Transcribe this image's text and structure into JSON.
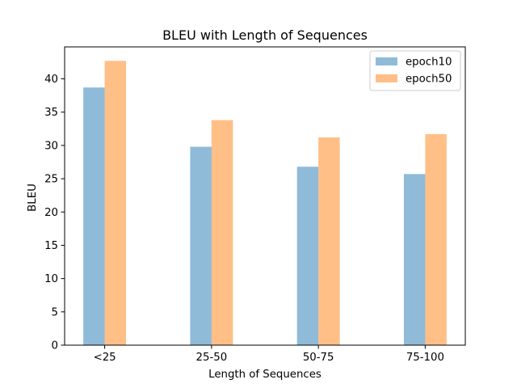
{
  "chart_data": {
    "type": "bar",
    "title": "BLEU with Length of Sequences",
    "xlabel": "Length of Sequences",
    "ylabel": "BLEU",
    "categories": [
      "<25",
      "25-50",
      "50-75",
      "75-100"
    ],
    "series": [
      {
        "name": "epoch10",
        "values": [
          38.7,
          29.8,
          26.8,
          25.7
        ],
        "color": "#1f77b4"
      },
      {
        "name": "epoch50",
        "values": [
          42.7,
          33.8,
          31.2,
          31.7
        ],
        "color": "#ff7f0e"
      }
    ],
    "bar_opacity": 0.5,
    "ylim": [
      0,
      44.8
    ],
    "yticks": [
      0,
      5,
      10,
      15,
      20,
      25,
      30,
      35,
      40
    ],
    "legend_position": "upper right",
    "grid": false
  }
}
